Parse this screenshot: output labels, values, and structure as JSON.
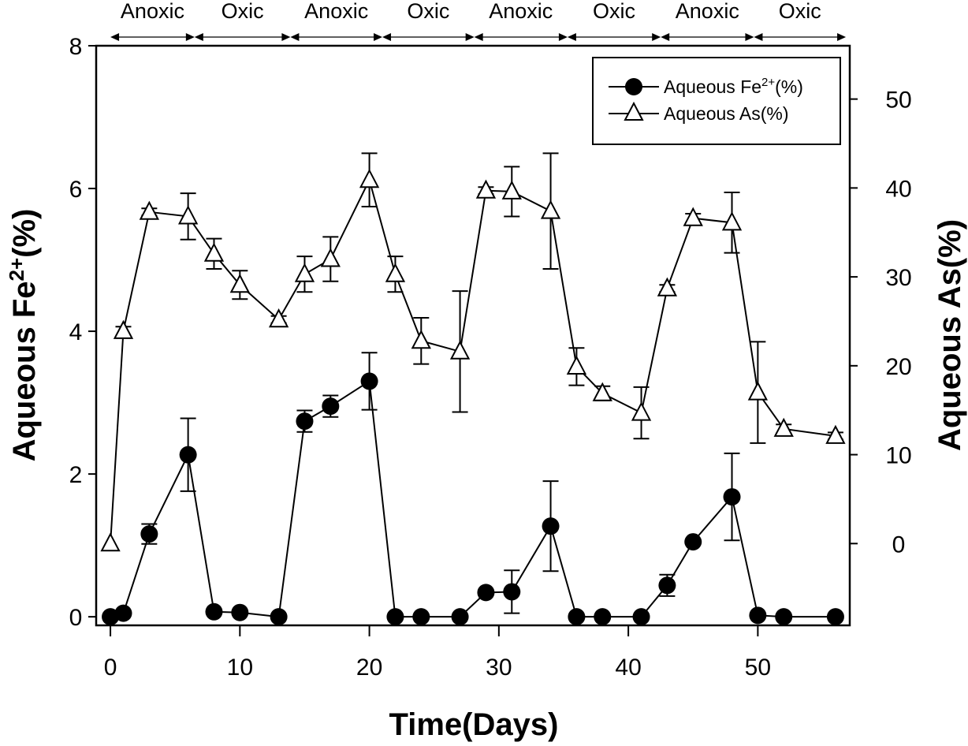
{
  "chart_data": {
    "type": "line",
    "title": "",
    "xlabel": "Time(Days)",
    "ylabel_left": "Aqueous Fe2+(%)",
    "ylabel_left_parts": {
      "base": "Aqueous Fe",
      "sup": "2+",
      "suffix": "(%)"
    },
    "ylabel_right": "Aqueous As(%)",
    "xlim": [
      -1.1,
      57.1
    ],
    "ylim_left": [
      -0.12,
      8
    ],
    "ylim_right": [
      -9.2,
      56
    ],
    "x_ticks": [
      0,
      10,
      20,
      30,
      40,
      50
    ],
    "y_ticks_left": [
      0,
      2,
      4,
      6,
      8
    ],
    "y_ticks_right": [
      0,
      10,
      20,
      30,
      40,
      50
    ],
    "grid": false,
    "legend": {
      "position": "top-right",
      "entries": [
        {
          "label_base": "Aqueous Fe",
          "label_sup": "2+",
          "label_suffix": "(%)",
          "marker": "filled-circle"
        },
        {
          "label_base": "Aqueous As(%)",
          "label_sup": "",
          "label_suffix": "",
          "marker": "open-triangle"
        }
      ]
    },
    "phases": [
      {
        "label": "Anoxic",
        "start": 0,
        "end": 6.5
      },
      {
        "label": "Oxic",
        "start": 6.5,
        "end": 13.9
      },
      {
        "label": "Anoxic",
        "start": 13.9,
        "end": 21.0
      },
      {
        "label": "Oxic",
        "start": 21.0,
        "end": 28.1
      },
      {
        "label": "Anoxic",
        "start": 28.1,
        "end": 35.3
      },
      {
        "label": "Oxic",
        "start": 35.3,
        "end": 42.5
      },
      {
        "label": "Anoxic",
        "start": 42.5,
        "end": 49.7
      },
      {
        "label": "Oxic",
        "start": 49.7,
        "end": 56.8
      }
    ],
    "series": [
      {
        "name": "Aqueous Fe2+(%)",
        "axis": "left",
        "marker": "filled-circle",
        "x": [
          0,
          1,
          3,
          6,
          8,
          10,
          13,
          15,
          17,
          20,
          22,
          24,
          27,
          29,
          31,
          34,
          36,
          38,
          41,
          43,
          45,
          48,
          50,
          52,
          56
        ],
        "y": [
          0,
          0.05,
          1.16,
          2.27,
          0.07,
          0.06,
          0,
          2.74,
          2.95,
          3.3,
          0,
          0,
          0,
          0.34,
          0.35,
          1.27,
          0,
          0,
          0,
          0.44,
          1.05,
          1.68,
          0.02,
          0,
          0
        ],
        "error": [
          0,
          0,
          0.14,
          0.51,
          0,
          0,
          0,
          0.15,
          0.15,
          0.4,
          0,
          0,
          0,
          0,
          0.3,
          0.63,
          0,
          0,
          0,
          0.15,
          0,
          0.61,
          0,
          0,
          0
        ]
      },
      {
        "name": "Aqueous As(%)",
        "axis": "right",
        "marker": "open-triangle",
        "x": [
          0,
          1,
          3,
          6,
          8,
          10,
          13,
          15,
          17,
          20,
          22,
          24,
          27,
          29,
          31,
          34,
          36,
          38,
          41,
          43,
          45,
          48,
          50,
          52,
          56
        ],
        "y": [
          0,
          23.9,
          37.3,
          36.8,
          32.6,
          29.1,
          25.2,
          30.3,
          32.0,
          40.9,
          30.3,
          22.8,
          21.6,
          39.7,
          39.6,
          37.4,
          19.9,
          16.9,
          14.7,
          28.7,
          36.6,
          36.1,
          17.0,
          12.9,
          12.1
        ],
        "error": [
          0,
          0.5,
          0.4,
          2.6,
          1.7,
          1.6,
          0.4,
          2.0,
          2.5,
          3.0,
          2.0,
          2.6,
          6.8,
          0.4,
          2.8,
          6.5,
          2.1,
          0.8,
          2.9,
          0.4,
          0.5,
          3.4,
          5.7,
          0.5,
          0.4
        ]
      }
    ]
  }
}
